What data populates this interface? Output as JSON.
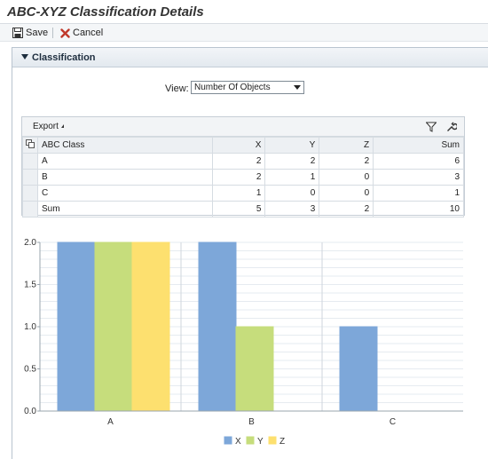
{
  "window": {
    "title": "ABC-XYZ Classification Details"
  },
  "toolbar": {
    "save_label": "Save",
    "cancel_label": "Cancel"
  },
  "panel": {
    "title": "Classification"
  },
  "view": {
    "label": "View:",
    "selected": "Number Of Objects"
  },
  "table_toolbar": {
    "export_label": "Export"
  },
  "table": {
    "columns": [
      "ABC Class",
      "X",
      "Y",
      "Z",
      "Sum"
    ],
    "rows": [
      [
        "A",
        "2",
        "2",
        "2",
        "6"
      ],
      [
        "B",
        "2",
        "1",
        "0",
        "3"
      ],
      [
        "C",
        "1",
        "0",
        "0",
        "1"
      ],
      [
        "Sum",
        "5",
        "3",
        "2",
        "10"
      ]
    ]
  },
  "chart_data": {
    "type": "bar",
    "categories": [
      "A",
      "B",
      "C"
    ],
    "series": [
      {
        "name": "X",
        "values": [
          2,
          2,
          1
        ],
        "color": "#7da7d9"
      },
      {
        "name": "Y",
        "values": [
          2,
          1,
          0
        ],
        "color": "#c6dd7c"
      },
      {
        "name": "Z",
        "values": [
          2,
          0,
          0
        ],
        "color": "#fde06f"
      }
    ],
    "yticks": [
      "0.0",
      "0.5",
      "1.0",
      "1.5",
      "2.0"
    ],
    "ylim": [
      0,
      2
    ],
    "grid": true,
    "legend": "bottom-center",
    "title": "",
    "xlabel": "",
    "ylabel": ""
  }
}
